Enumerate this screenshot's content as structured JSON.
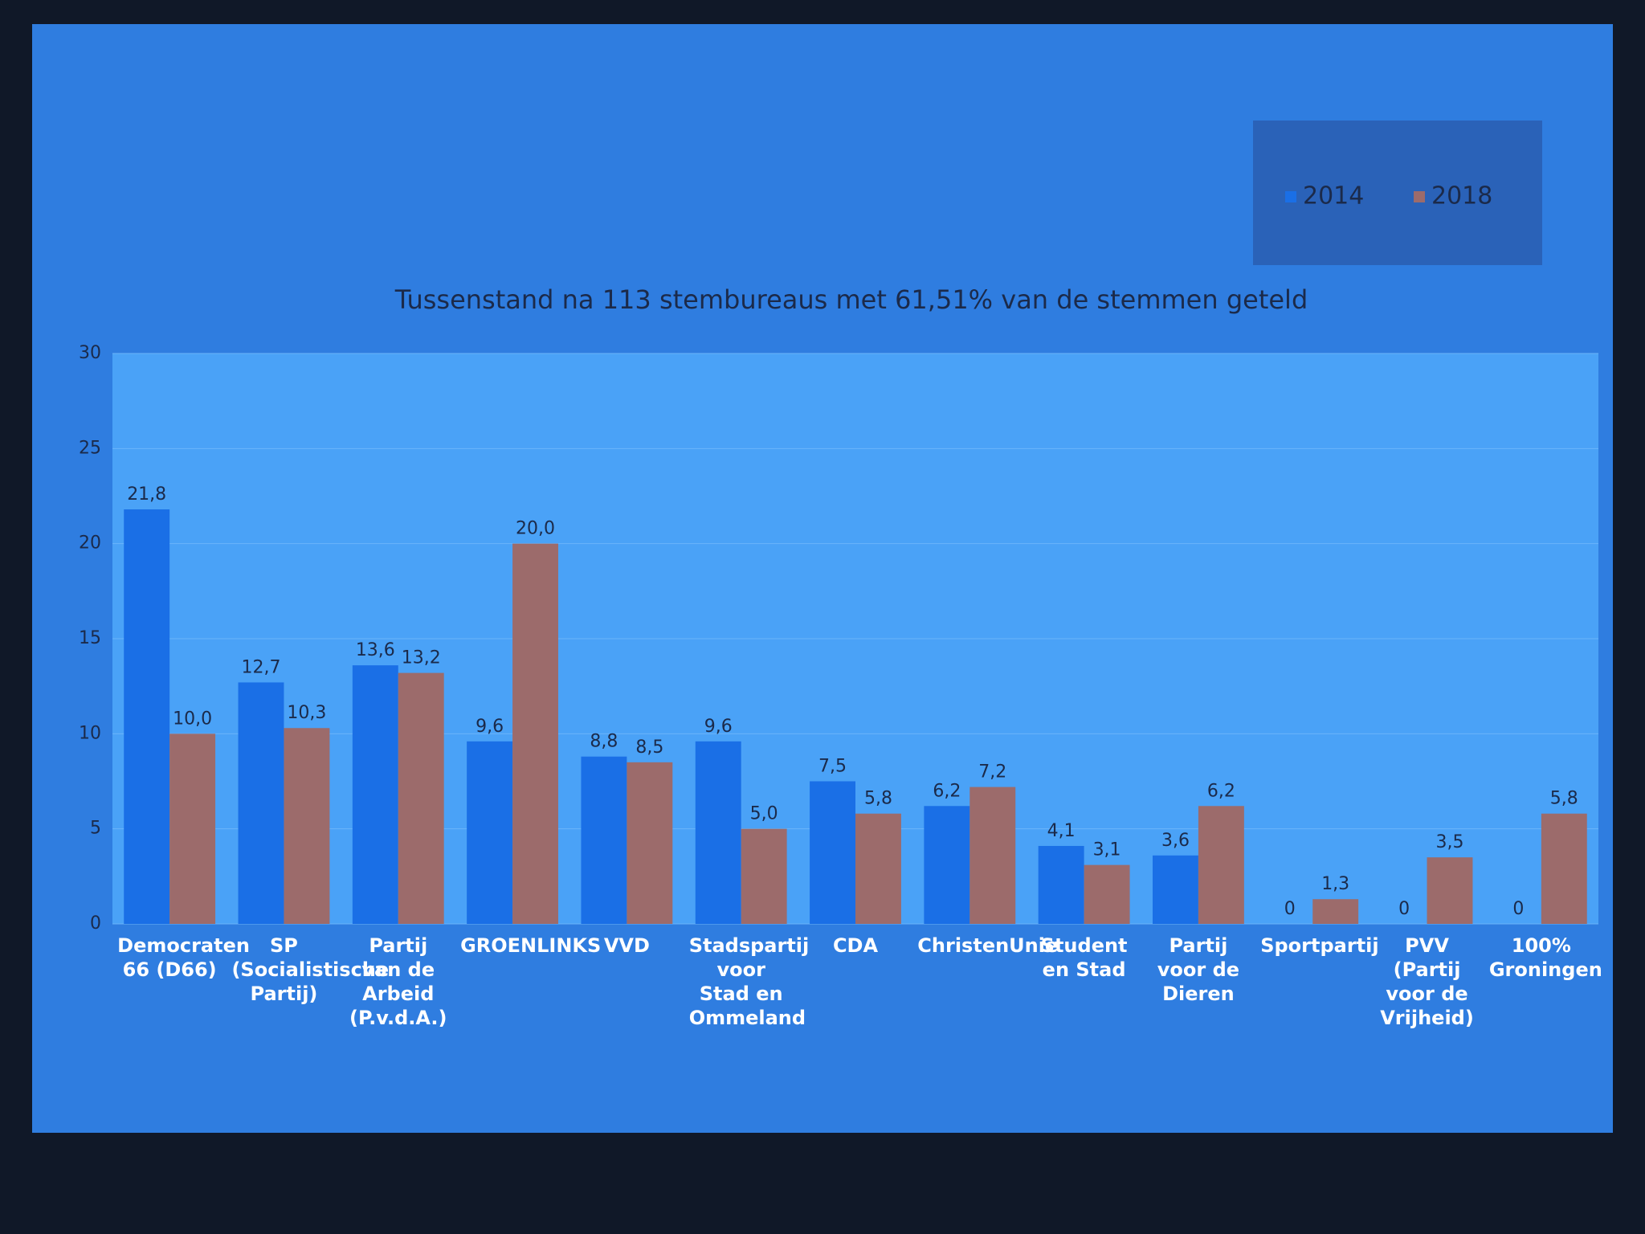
{
  "chart_data": {
    "type": "bar",
    "title": "Tussenstand na 113 stembureaus met 61,51% van de stemmen geteld",
    "categories": [
      "Democraten 66 (D66)",
      "SP (Socialistische Partij)",
      "Partij van de Arbeid (P.v.d.A.)",
      "GROENLINKS",
      "VVD",
      "Stadspartij voor Stad en Ommeland",
      "CDA",
      "ChristenUnie",
      "Student en Stad",
      "Partij voor de Dieren",
      "Sportpartij",
      "PVV (Partij voor de Vrijheid)",
      "100% Groningen"
    ],
    "series": [
      {
        "name": "2014",
        "color": "#1a6fe6",
        "values": [
          21.8,
          12.7,
          13.6,
          9.6,
          8.8,
          9.6,
          7.5,
          6.2,
          4.1,
          3.6,
          0,
          0,
          0
        ],
        "value_labels": [
          "21,8",
          "12,7",
          "13,6",
          "9,6",
          "8,8",
          "9,6",
          "7,5",
          "6,2",
          "4,1",
          "3,6",
          "0",
          "0",
          "0"
        ]
      },
      {
        "name": "2018",
        "color": "#9c6b6b",
        "values": [
          10.0,
          10.3,
          13.2,
          20.0,
          8.5,
          5.0,
          5.8,
          7.2,
          3.1,
          6.2,
          1.3,
          3.5,
          5.8
        ],
        "value_labels": [
          "10,0",
          "10,3",
          "13,2",
          "20,0",
          "8,5",
          "5,0",
          "5,8",
          "7,2",
          "3,1",
          "6,2",
          "1,3",
          "3,5",
          "5,8"
        ]
      }
    ],
    "ylim": [
      0,
      30
    ],
    "yticks": [
      0,
      5,
      10,
      15,
      20,
      25,
      30
    ],
    "grid": true,
    "legend": "top-right"
  }
}
